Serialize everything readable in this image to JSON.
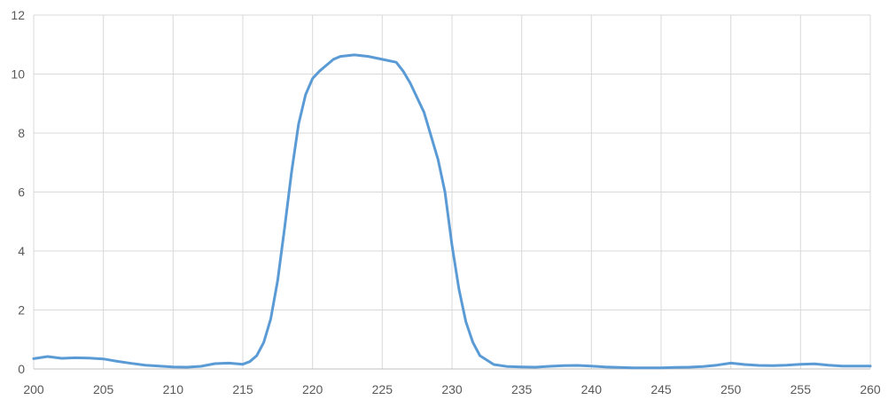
{
  "chart_data": {
    "type": "line",
    "title": "",
    "xlabel": "",
    "ylabel": "",
    "xlim": [
      200,
      260
    ],
    "ylim": [
      0,
      12
    ],
    "x_ticks": [
      200,
      205,
      210,
      215,
      220,
      225,
      230,
      235,
      240,
      245,
      250,
      255,
      260
    ],
    "y_ticks": [
      0,
      2,
      4,
      6,
      8,
      10,
      12
    ],
    "grid": true,
    "legend": "none",
    "series": [
      {
        "color": "#5b9bd5",
        "points": [
          [
            200,
            0.35
          ],
          [
            201,
            0.42
          ],
          [
            202,
            0.36
          ],
          [
            203,
            0.38
          ],
          [
            204,
            0.37
          ],
          [
            205,
            0.34
          ],
          [
            206,
            0.26
          ],
          [
            207,
            0.19
          ],
          [
            208,
            0.13
          ],
          [
            209,
            0.1
          ],
          [
            210,
            0.07
          ],
          [
            211,
            0.06
          ],
          [
            212,
            0.09
          ],
          [
            213,
            0.18
          ],
          [
            214,
            0.2
          ],
          [
            215,
            0.16
          ],
          [
            215.5,
            0.25
          ],
          [
            216,
            0.45
          ],
          [
            216.5,
            0.9
          ],
          [
            217,
            1.7
          ],
          [
            217.5,
            3.0
          ],
          [
            218,
            4.8
          ],
          [
            218.5,
            6.7
          ],
          [
            219,
            8.3
          ],
          [
            219.5,
            9.3
          ],
          [
            220,
            9.85
          ],
          [
            220.5,
            10.1
          ],
          [
            221,
            10.3
          ],
          [
            221.5,
            10.5
          ],
          [
            222,
            10.6
          ],
          [
            223,
            10.65
          ],
          [
            224,
            10.6
          ],
          [
            225,
            10.5
          ],
          [
            226,
            10.4
          ],
          [
            226.5,
            10.1
          ],
          [
            227,
            9.7
          ],
          [
            228,
            8.7
          ],
          [
            229,
            7.1
          ],
          [
            229.5,
            6.0
          ],
          [
            230,
            4.2
          ],
          [
            230.5,
            2.7
          ],
          [
            231,
            1.6
          ],
          [
            231.5,
            0.9
          ],
          [
            232,
            0.45
          ],
          [
            233,
            0.15
          ],
          [
            234,
            0.08
          ],
          [
            235,
            0.07
          ],
          [
            236,
            0.06
          ],
          [
            237,
            0.09
          ],
          [
            238,
            0.11
          ],
          [
            239,
            0.12
          ],
          [
            240,
            0.1
          ],
          [
            241,
            0.07
          ],
          [
            242,
            0.05
          ],
          [
            243,
            0.04
          ],
          [
            244,
            0.04
          ],
          [
            245,
            0.04
          ],
          [
            246,
            0.05
          ],
          [
            247,
            0.06
          ],
          [
            248,
            0.08
          ],
          [
            249,
            0.13
          ],
          [
            250,
            0.2
          ],
          [
            251,
            0.15
          ],
          [
            252,
            0.12
          ],
          [
            253,
            0.11
          ],
          [
            254,
            0.13
          ],
          [
            255,
            0.16
          ],
          [
            256,
            0.17
          ],
          [
            257,
            0.13
          ],
          [
            258,
            0.1
          ],
          [
            259,
            0.1
          ],
          [
            260,
            0.1
          ]
        ]
      }
    ]
  }
}
